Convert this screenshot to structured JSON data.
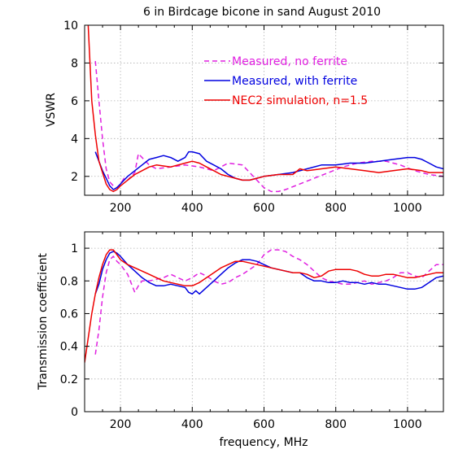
{
  "chart_data": [
    {
      "type": "line",
      "title": "6 in Birdcage bicone in sand August 2010",
      "xlabel": "",
      "ylabel": "VSWR",
      "xlim": [
        100,
        1100
      ],
      "ylim": [
        1,
        10
      ],
      "xticks": [
        200,
        400,
        600,
        800,
        1000
      ],
      "yticks": [
        2,
        4,
        6,
        8,
        10
      ],
      "grid": true,
      "legend_position": "top-right",
      "series": [
        {
          "name": "Measured, no ferrite",
          "color": "#e020e0",
          "style": "dashed",
          "x": [
            130,
            140,
            150,
            160,
            170,
            180,
            190,
            200,
            210,
            220,
            240,
            250,
            260,
            280,
            300,
            340,
            380,
            420,
            460,
            500,
            540,
            560,
            600,
            620,
            640,
            660,
            700,
            740,
            780,
            820,
            860,
            900,
            940,
            980,
            1020,
            1060,
            1100
          ],
          "y": [
            8.1,
            6.0,
            4.0,
            2.4,
            1.7,
            1.5,
            1.4,
            1.6,
            1.9,
            1.8,
            2.2,
            3.2,
            3.0,
            2.6,
            2.4,
            2.5,
            2.6,
            2.5,
            2.3,
            2.7,
            2.6,
            2.2,
            1.4,
            1.2,
            1.2,
            1.3,
            1.6,
            1.9,
            2.2,
            2.5,
            2.7,
            2.8,
            2.8,
            2.6,
            2.3,
            2.1,
            2.0
          ]
        },
        {
          "name": "Measured, with ferrite",
          "color": "#0000e0",
          "style": "solid",
          "x": [
            130,
            140,
            150,
            160,
            170,
            180,
            190,
            200,
            210,
            220,
            240,
            260,
            280,
            300,
            320,
            340,
            360,
            380,
            390,
            400,
            420,
            440,
            460,
            480,
            500,
            520,
            540,
            560,
            580,
            600,
            640,
            680,
            720,
            760,
            800,
            840,
            880,
            920,
            960,
            1000,
            1020,
            1040,
            1060,
            1080,
            1100
          ],
          "y": [
            3.3,
            2.8,
            2.3,
            1.9,
            1.5,
            1.3,
            1.4,
            1.6,
            1.8,
            2.0,
            2.3,
            2.6,
            2.9,
            3.0,
            3.1,
            3.0,
            2.8,
            3.0,
            3.3,
            3.3,
            3.2,
            2.8,
            2.6,
            2.4,
            2.1,
            1.9,
            1.8,
            1.8,
            1.9,
            2.0,
            2.1,
            2.2,
            2.4,
            2.6,
            2.6,
            2.7,
            2.7,
            2.8,
            2.9,
            3.0,
            3.0,
            2.9,
            2.7,
            2.5,
            2.4
          ]
        },
        {
          "name": "NEC2 simulation, n=1.5",
          "color": "#ee0000",
          "style": "solid",
          "x": [
            110,
            120,
            130,
            140,
            150,
            160,
            170,
            180,
            190,
            200,
            220,
            240,
            260,
            280,
            300,
            340,
            380,
            400,
            420,
            440,
            460,
            480,
            500,
            520,
            540,
            560,
            580,
            600,
            640,
            680,
            700,
            720,
            760,
            800,
            840,
            880,
            920,
            960,
            1000,
            1040,
            1060,
            1080,
            1100
          ],
          "y": [
            10.0,
            6.0,
            4.2,
            2.8,
            2.2,
            1.6,
            1.3,
            1.2,
            1.3,
            1.5,
            1.8,
            2.1,
            2.3,
            2.5,
            2.6,
            2.5,
            2.7,
            2.8,
            2.7,
            2.5,
            2.3,
            2.1,
            2.0,
            1.9,
            1.8,
            1.8,
            1.9,
            2.0,
            2.1,
            2.1,
            2.4,
            2.3,
            2.4,
            2.5,
            2.4,
            2.3,
            2.2,
            2.3,
            2.4,
            2.3,
            2.2,
            2.2,
            2.2
          ]
        }
      ]
    },
    {
      "type": "line",
      "title": "",
      "xlabel": "frequency, MHz",
      "ylabel": "Transmission coefficient",
      "xlim": [
        100,
        1100
      ],
      "ylim": [
        0,
        1.1
      ],
      "xticks": [
        200,
        400,
        600,
        800,
        1000
      ],
      "yticks": [
        0,
        0.2,
        0.4,
        0.6,
        0.8,
        1
      ],
      "ytick_labels": [
        "0",
        "0.2",
        "0.4",
        "0.6",
        "0.8",
        "1"
      ],
      "grid": true,
      "series": [
        {
          "color": "#e020e0",
          "style": "dashed",
          "x": [
            130,
            140,
            150,
            160,
            170,
            180,
            190,
            200,
            220,
            240,
            250,
            260,
            280,
            300,
            320,
            340,
            360,
            380,
            400,
            420,
            440,
            460,
            480,
            500,
            520,
            540,
            560,
            580,
            600,
            620,
            640,
            660,
            680,
            700,
            720,
            740,
            760,
            780,
            800,
            820,
            840,
            860,
            880,
            900,
            920,
            940,
            960,
            980,
            1000,
            1020,
            1040,
            1060,
            1080,
            1100
          ],
          "y": [
            0.35,
            0.5,
            0.7,
            0.85,
            0.93,
            0.95,
            0.92,
            0.9,
            0.84,
            0.73,
            0.77,
            0.8,
            0.8,
            0.81,
            0.82,
            0.84,
            0.82,
            0.8,
            0.82,
            0.85,
            0.83,
            0.8,
            0.78,
            0.79,
            0.82,
            0.84,
            0.87,
            0.9,
            0.96,
            0.99,
            0.99,
            0.98,
            0.95,
            0.93,
            0.9,
            0.86,
            0.82,
            0.8,
            0.79,
            0.78,
            0.78,
            0.79,
            0.8,
            0.78,
            0.79,
            0.8,
            0.82,
            0.85,
            0.85,
            0.83,
            0.82,
            0.86,
            0.9,
            0.9
          ]
        },
        {
          "color": "#0000e0",
          "style": "solid",
          "x": [
            130,
            140,
            150,
            160,
            170,
            180,
            190,
            200,
            220,
            240,
            260,
            280,
            300,
            320,
            340,
            360,
            380,
            390,
            400,
            410,
            420,
            440,
            460,
            480,
            500,
            520,
            540,
            560,
            580,
            600,
            620,
            640,
            660,
            680,
            700,
            720,
            740,
            760,
            780,
            800,
            820,
            840,
            860,
            880,
            900,
            920,
            940,
            960,
            980,
            1000,
            1020,
            1040,
            1060,
            1080,
            1100
          ],
          "y": [
            0.72,
            0.78,
            0.87,
            0.93,
            0.97,
            0.98,
            0.97,
            0.95,
            0.9,
            0.86,
            0.82,
            0.79,
            0.77,
            0.77,
            0.78,
            0.77,
            0.76,
            0.73,
            0.72,
            0.74,
            0.72,
            0.76,
            0.8,
            0.84,
            0.88,
            0.91,
            0.93,
            0.93,
            0.92,
            0.9,
            0.88,
            0.87,
            0.86,
            0.85,
            0.85,
            0.82,
            0.8,
            0.8,
            0.79,
            0.79,
            0.8,
            0.79,
            0.79,
            0.78,
            0.79,
            0.78,
            0.78,
            0.77,
            0.76,
            0.75,
            0.75,
            0.76,
            0.79,
            0.82,
            0.83
          ]
        },
        {
          "color": "#ee0000",
          "style": "solid",
          "x": [
            100,
            110,
            120,
            130,
            140,
            150,
            160,
            170,
            180,
            190,
            200,
            220,
            240,
            260,
            280,
            300,
            320,
            340,
            360,
            380,
            400,
            420,
            440,
            460,
            480,
            500,
            520,
            540,
            560,
            580,
            600,
            620,
            640,
            660,
            680,
            700,
            720,
            740,
            760,
            780,
            800,
            820,
            840,
            860,
            880,
            900,
            920,
            940,
            960,
            980,
            1000,
            1020,
            1040,
            1060,
            1080,
            1100
          ],
          "y": [
            0.3,
            0.45,
            0.6,
            0.72,
            0.82,
            0.9,
            0.96,
            0.99,
            0.99,
            0.96,
            0.93,
            0.9,
            0.88,
            0.86,
            0.84,
            0.82,
            0.8,
            0.79,
            0.78,
            0.77,
            0.77,
            0.79,
            0.82,
            0.85,
            0.88,
            0.9,
            0.92,
            0.92,
            0.91,
            0.9,
            0.89,
            0.88,
            0.87,
            0.86,
            0.85,
            0.85,
            0.84,
            0.82,
            0.83,
            0.86,
            0.87,
            0.87,
            0.87,
            0.86,
            0.84,
            0.83,
            0.83,
            0.84,
            0.84,
            0.83,
            0.82,
            0.82,
            0.83,
            0.84,
            0.85,
            0.85
          ]
        }
      ]
    }
  ]
}
